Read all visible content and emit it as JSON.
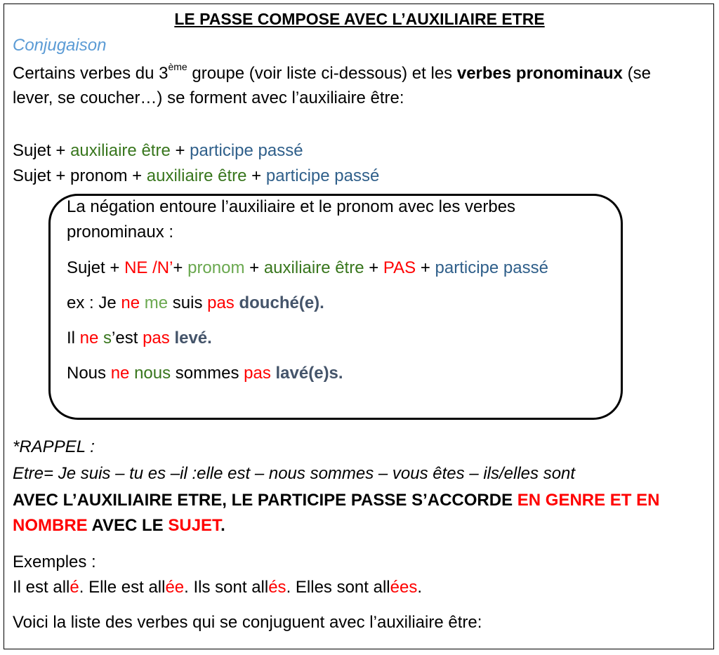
{
  "title": "LE PASSE COMPOSE AVEC L’AUXILIAIRE ETRE",
  "subtitle": "Conjugaison",
  "intro": {
    "l1_a": "Certains verbes du 3",
    "l1_sup": "ème",
    "l1_b": " groupe (voir liste ci-dessous) et les ",
    "l1_bold": "verbes pronominaux",
    "l1_c": " (se",
    "l2": "lever, se coucher…) se forment avec l’auxiliaire être:"
  },
  "formula1": {
    "subject": "Sujet + ",
    "aux": "auxiliaire être",
    "plus": " + ",
    "participle": "participe passé"
  },
  "formula2": {
    "subject": "Sujet + pronom + ",
    "aux": "auxiliaire être",
    "plus": " + ",
    "participle": "participe passé"
  },
  "negation_box": {
    "line1": "La négation entoure l’auxiliaire et le pronom avec les verbes",
    "line2": "pronominaux :",
    "rule": {
      "subject": "Sujet + ",
      "ne": "NE /N’",
      "p1": "+ ",
      "pronom": "pronom",
      "p2": " + ",
      "aux": "auxiliaire être",
      "p3": " + ",
      "pas": "PAS",
      "p4": " + ",
      "participle": "participe passé"
    },
    "ex1": {
      "a": "ex : Je ",
      "ne": "ne",
      "sp1": " ",
      "pron": "me",
      "b": " suis ",
      "pas": "pas",
      "sp2": " ",
      "verb": "douché(e)."
    },
    "ex2": {
      "a": "Il ",
      "ne": "ne",
      "sp1": " ",
      "pron": "s",
      "b": "’est ",
      "pas": "pas",
      "sp2": " ",
      "verb": "levé."
    },
    "ex3": {
      "a": "Nous ",
      "ne": "ne",
      "sp1": " ",
      "pron": "nous",
      "b": " sommes ",
      "pas": "pas",
      "sp2": " ",
      "verb": "lavé(e)s."
    }
  },
  "rappel": {
    "heading": "*RAPPEL :",
    "conjugation": "Etre= Je suis – tu es –il :elle est – nous sommes – vous êtes – ils/elles sont"
  },
  "rule_caps": {
    "a": "AVEC L’AUXILIAIRE ETRE, LE PARTICIPE PASSE S’ACCORDE ",
    "red1": "EN GENRE ET EN",
    "red2": "NOMBRE",
    "b": " AVEC LE ",
    "red3": "SUJET",
    "c": "."
  },
  "examples": {
    "heading": "Exemples :",
    "e1": "Il est all",
    "e1_end": "é",
    "e1_sep": ". Elle est all",
    "e2_end": "ée",
    "e2_sep": ". Ils sont all",
    "e3_end": "és",
    "e3_sep": ". Elles sont all",
    "e4_end": "ées",
    "e4_sep": "."
  },
  "closing": "Voici la liste des verbes qui se conjuguent avec l’auxiliaire être:",
  "colors": {
    "subtitle": "#5b9bd5",
    "auxiliary": "#38761d",
    "pronoun": "#6aa84f",
    "participle": "#2f5f8a",
    "negation": "#ff0000",
    "verb_bold": "#44546a"
  }
}
